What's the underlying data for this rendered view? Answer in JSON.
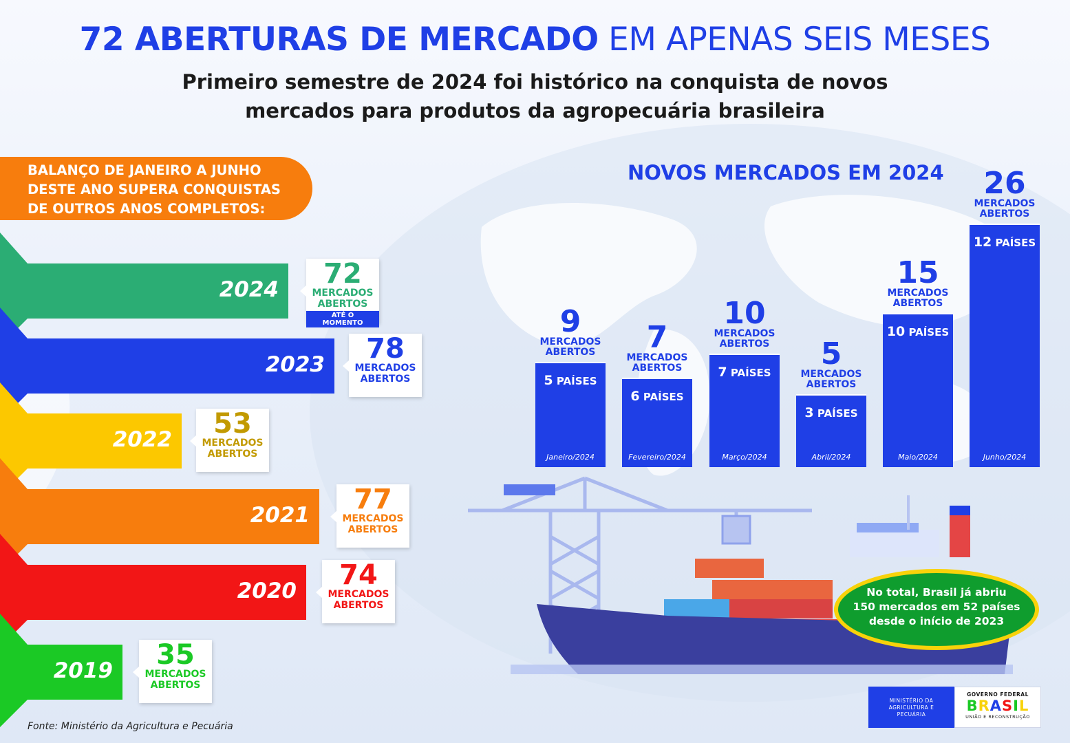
{
  "header": {
    "title_bold": "72 ABERTURAS DE MERCADO",
    "title_light": "EM APENAS SEIS MESES",
    "subtitle_line1": "Primeiro semestre de 2024 foi histórico na conquista de novos",
    "subtitle_line2": "mercados para produtos da agropecuária brasileira"
  },
  "balanco": {
    "line1": "BALANÇO DE JANEIRO A JUNHO",
    "line2": "DESTE ANO SUPERA CONQUISTAS",
    "line3": "DE OUTROS ANOS COMPLETOS:"
  },
  "years": [
    {
      "year": "2024",
      "value": "72",
      "label1": "MERCADOS",
      "label2": "ABERTOS",
      "badge": "ATÉ O MOMENTO",
      "color": "#2bad74",
      "numcolor": "#2bad74"
    },
    {
      "year": "2023",
      "value": "78",
      "label1": "MERCADOS",
      "label2": "ABERTOS",
      "badge": "",
      "color": "#1f3fe6",
      "numcolor": "#1f3fe6"
    },
    {
      "year": "2022",
      "value": "53",
      "label1": "MERCADOS",
      "label2": "ABERTOS",
      "badge": "",
      "color": "#fcc800",
      "numcolor": "#c29a00"
    },
    {
      "year": "2021",
      "value": "77",
      "label1": "MERCADOS",
      "label2": "ABERTOS",
      "badge": "",
      "color": "#f77d0d",
      "numcolor": "#f77d0d"
    },
    {
      "year": "2020",
      "value": "74",
      "label1": "MERCADOS",
      "label2": "ABERTOS",
      "badge": "",
      "color": "#f21616",
      "numcolor": "#f21616"
    },
    {
      "year": "2019",
      "value": "35",
      "label1": "MERCADOS",
      "label2": "ABERTOS",
      "badge": "",
      "color": "#1bc925",
      "numcolor": "#1bc925"
    }
  ],
  "chart_data": {
    "type": "bar",
    "title": "NOVOS MERCADOS EM 2024",
    "categories": [
      "Janeiro/2024",
      "Fevereiro/2024",
      "Março/2024",
      "Abril/2024",
      "Maio/2024",
      "Junho/2024"
    ],
    "series": [
      {
        "name": "MERCADOS ABERTOS",
        "values": [
          9,
          7,
          10,
          5,
          15,
          26
        ]
      },
      {
        "name": "PAÍSES",
        "values": [
          5,
          6,
          7,
          3,
          10,
          12
        ]
      }
    ],
    "bar_label1": "MERCADOS",
    "bar_label2": "ABERTOS",
    "paises_word": "PAÍSES",
    "ylim": [
      0,
      26
    ]
  },
  "total_box": {
    "line1": "No total, Brasil já abriu",
    "line2": "150 mercados em 52 países",
    "line3": "desde o início de 2023"
  },
  "footer": {
    "fonte": "Fonte: Ministério da Agricultura e Pecuária",
    "ministerio_line1": "MINISTÉRIO DA",
    "ministerio_line2": "AGRICULTURA E",
    "ministerio_line3": "PECUÁRIA",
    "gov_line1": "GOVERNO FEDERAL",
    "gov_brasil": "BRASIL",
    "gov_line3": "UNIÃO E RECONSTRUÇÃO"
  },
  "colors": {
    "blue": "#1f3fe6",
    "green": "#0f9d2e",
    "yellow": "#f8d20a",
    "orange": "#f77d0d"
  }
}
